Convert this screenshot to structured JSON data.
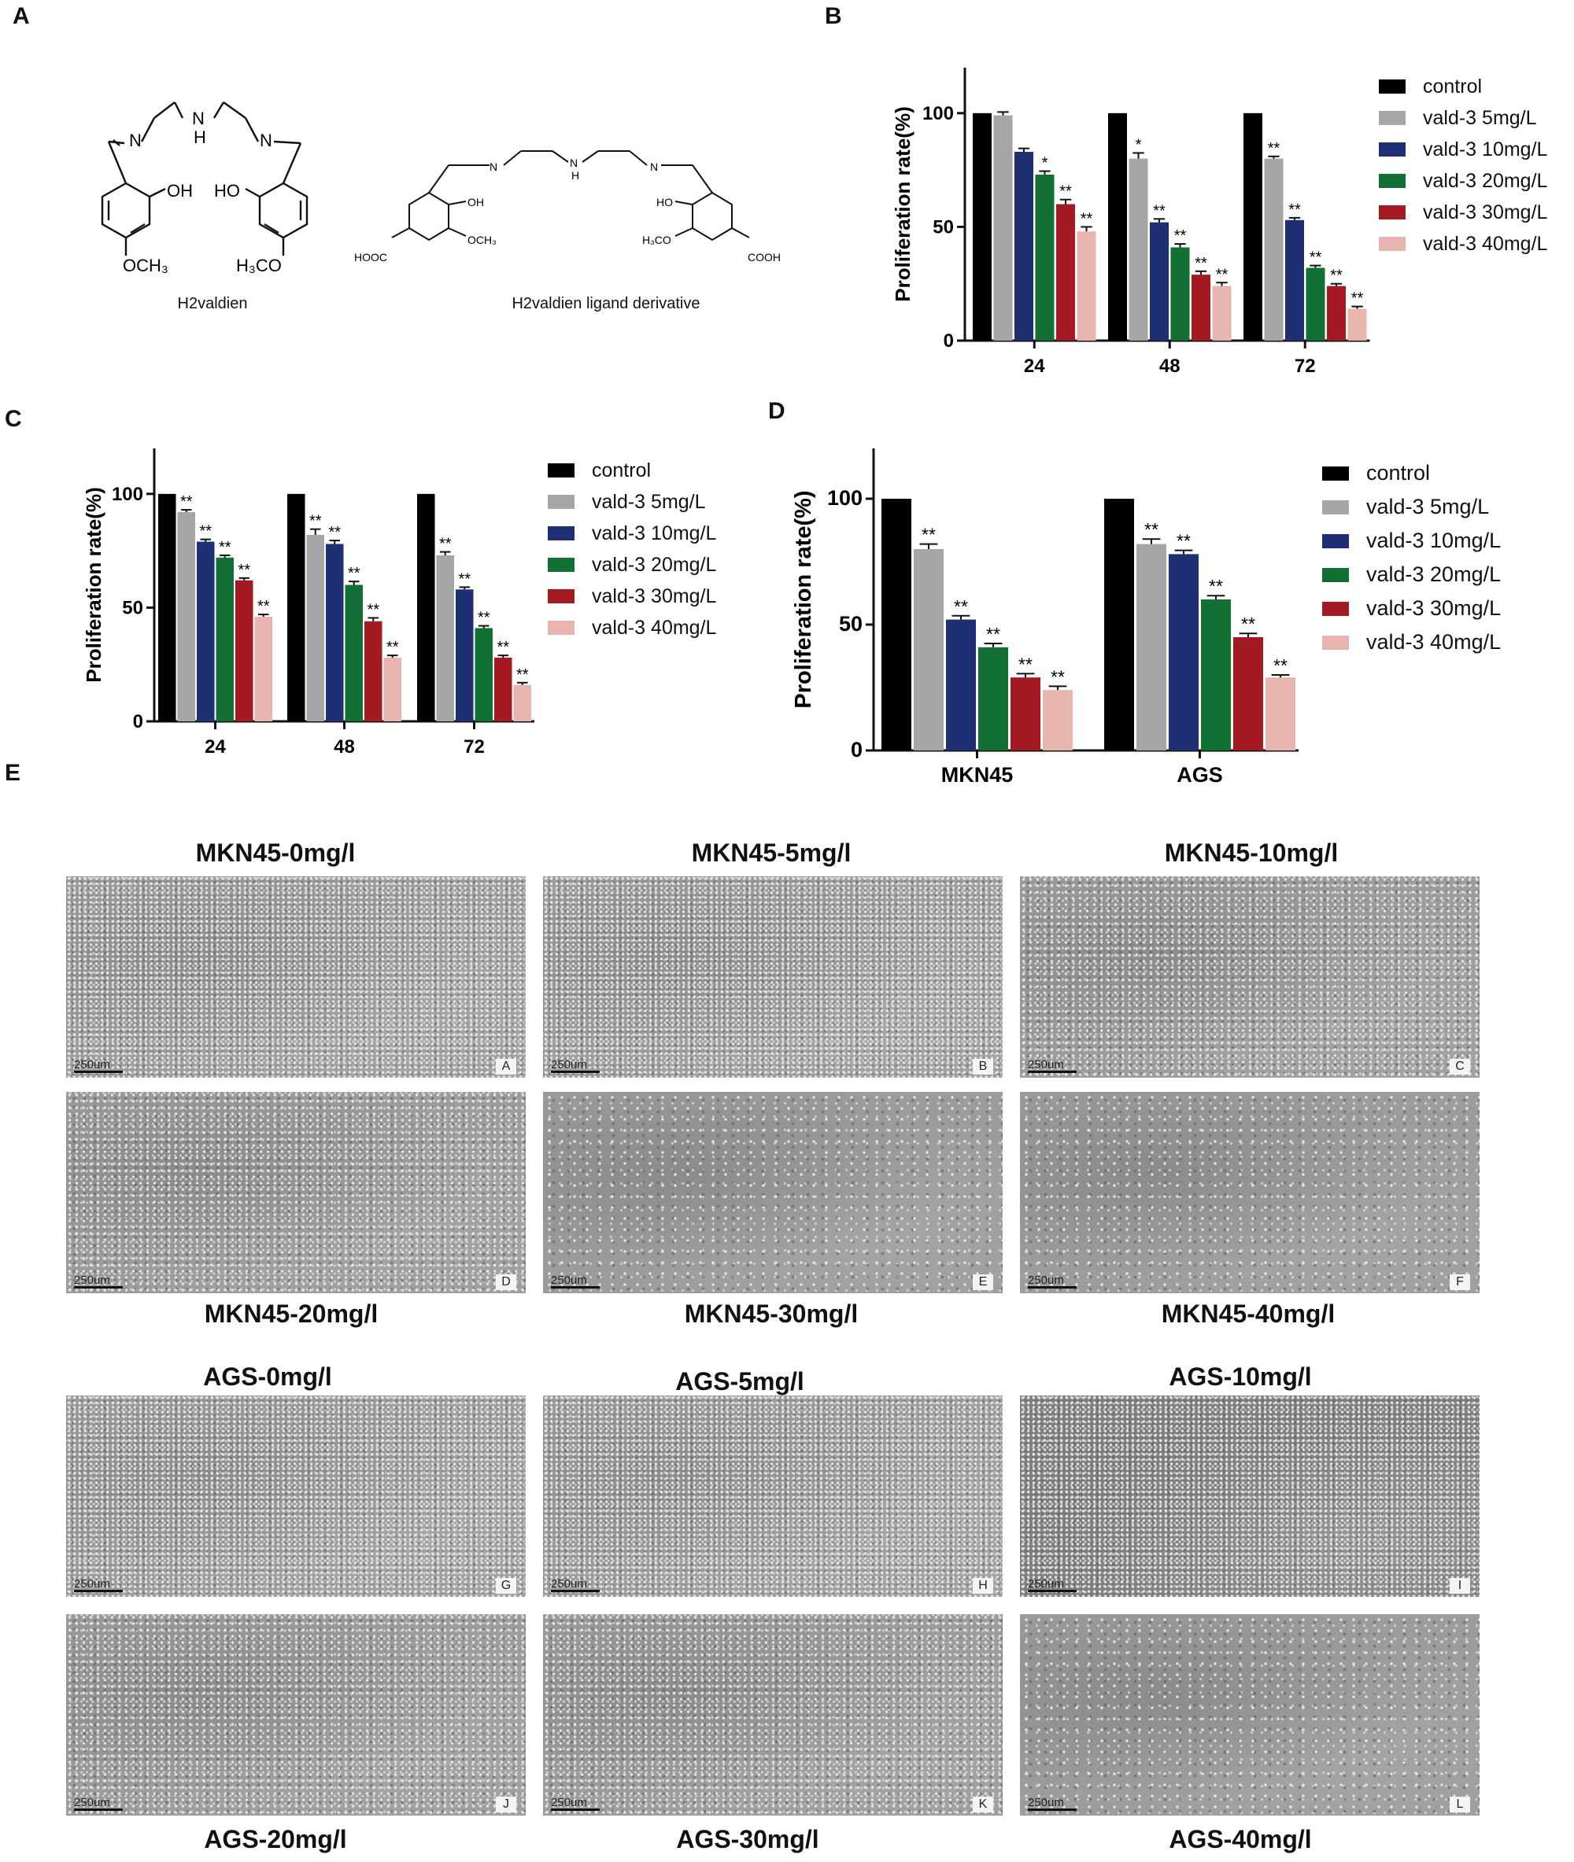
{
  "panels": {
    "A": "A",
    "B": "B",
    "C": "C",
    "D": "D",
    "E": "E"
  },
  "chem": {
    "left_name": "H2valdien",
    "right_name": "H2valdien ligand derivative",
    "left_atoms": {
      "n1": "N",
      "nh": "N",
      "h": "H",
      "n2": "N",
      "oh": "OH",
      "ho": "HO",
      "och3": "OCH₃",
      "h3co": "H₃CO"
    },
    "right_atoms": {
      "n1": "N",
      "nh": "N",
      "h": "H",
      "n2": "N",
      "oh": "OH",
      "ho": "HO",
      "och3": "OCH₃",
      "h3co": "H₃CO",
      "hooc": "HOOC",
      "cooh": "COOH"
    }
  },
  "legend": [
    "control",
    "vald-3 5mg/L",
    "vald-3 10mg/L",
    "vald-3 20mg/L",
    "vald-3 30mg/L",
    "vald-3 40mg/L"
  ],
  "colors": [
    "#000000",
    "#a6a6a6",
    "#1f2f73",
    "#127035",
    "#a31a22",
    "#e8b4b0"
  ],
  "chart_data": [
    {
      "panel": "B",
      "type": "bar",
      "categories": [
        "24",
        "48",
        "72"
      ],
      "ylabel": "Proliferation rate(%)",
      "yticks": [
        0,
        50,
        100
      ],
      "ylim": [
        0,
        120
      ],
      "series": [
        {
          "name": "control",
          "values": [
            100,
            100,
            100
          ],
          "errors": [
            0,
            0,
            0
          ],
          "sig": [
            "",
            "",
            ""
          ]
        },
        {
          "name": "vald-3 5mg/L",
          "values": [
            99,
            80,
            80
          ],
          "errors": [
            1.5,
            2.5,
            1
          ],
          "sig": [
            "",
            "*",
            "**"
          ]
        },
        {
          "name": "vald-3 10mg/L",
          "values": [
            83,
            52,
            53
          ],
          "errors": [
            1.5,
            1.5,
            1
          ],
          "sig": [
            "",
            "**",
            "**"
          ]
        },
        {
          "name": "vald-3 20mg/L",
          "values": [
            73,
            41,
            32
          ],
          "errors": [
            1.5,
            1.5,
            1
          ],
          "sig": [
            "*",
            "**",
            "**"
          ]
        },
        {
          "name": "vald-3 30mg/L",
          "values": [
            60,
            29,
            24
          ],
          "errors": [
            2,
            1.5,
            1
          ],
          "sig": [
            "**",
            "**",
            "**"
          ]
        },
        {
          "name": "vald-3 40mg/L",
          "values": [
            48,
            24,
            14
          ],
          "errors": [
            2,
            1.5,
            1
          ],
          "sig": [
            "**",
            "**",
            "**"
          ]
        }
      ]
    },
    {
      "panel": "C",
      "type": "bar",
      "categories": [
        "24",
        "48",
        "72"
      ],
      "ylabel": "Proliferation rate(%)",
      "yticks": [
        0,
        50,
        100
      ],
      "ylim": [
        0,
        120
      ],
      "series": [
        {
          "name": "control",
          "values": [
            100,
            100,
            100
          ],
          "errors": [
            0,
            0,
            0
          ],
          "sig": [
            "",
            "",
            ""
          ]
        },
        {
          "name": "vald-3 5mg/L",
          "values": [
            92,
            82,
            73
          ],
          "errors": [
            1,
            2.5,
            1.5
          ],
          "sig": [
            "**",
            "**",
            "**"
          ]
        },
        {
          "name": "vald-3 10mg/L",
          "values": [
            79,
            78,
            58
          ],
          "errors": [
            1,
            1.5,
            1
          ],
          "sig": [
            "**",
            "**",
            "**"
          ]
        },
        {
          "name": "vald-3 20mg/L",
          "values": [
            72,
            60,
            41
          ],
          "errors": [
            1,
            1.5,
            1
          ],
          "sig": [
            "**",
            "**",
            "**"
          ]
        },
        {
          "name": "vald-3 30mg/L",
          "values": [
            62,
            44,
            28
          ],
          "errors": [
            1,
            1.5,
            1
          ],
          "sig": [
            "**",
            "**",
            "**"
          ]
        },
        {
          "name": "vald-3 40mg/L",
          "values": [
            46,
            28,
            16
          ],
          "errors": [
            1,
            1,
            1
          ],
          "sig": [
            "**",
            "**",
            "**"
          ]
        }
      ]
    },
    {
      "panel": "D",
      "type": "bar",
      "categories": [
        "MKN45",
        "AGS"
      ],
      "ylabel": "Proliferation rate(%)",
      "yticks": [
        0,
        50,
        100
      ],
      "ylim": [
        0,
        120
      ],
      "series": [
        {
          "name": "control",
          "values": [
            100,
            100
          ],
          "errors": [
            0,
            0
          ],
          "sig": [
            "",
            ""
          ]
        },
        {
          "name": "vald-3 5mg/L",
          "values": [
            80,
            82
          ],
          "errors": [
            2,
            2
          ],
          "sig": [
            "**",
            "**"
          ]
        },
        {
          "name": "vald-3 10mg/L",
          "values": [
            52,
            78
          ],
          "errors": [
            1.5,
            1.5
          ],
          "sig": [
            "**",
            "**"
          ]
        },
        {
          "name": "vald-3 20mg/L",
          "values": [
            41,
            60
          ],
          "errors": [
            1.5,
            1.5
          ],
          "sig": [
            "**",
            "**"
          ]
        },
        {
          "name": "vald-3 30mg/L",
          "values": [
            29,
            45
          ],
          "errors": [
            1.5,
            1.5
          ],
          "sig": [
            "**",
            "**"
          ]
        },
        {
          "name": "vald-3 40mg/L",
          "values": [
            24,
            29
          ],
          "errors": [
            1.5,
            1
          ],
          "sig": [
            "**",
            "**"
          ]
        }
      ]
    }
  ],
  "micrographs": {
    "mkn45_titles": [
      "MKN45-0mg/l",
      "MKN45-5mg/l",
      "MKN45-10mg/l",
      "MKN45-20mg/l",
      "MKN45-30mg/l",
      "MKN45-40mg/l"
    ],
    "ags_titles": [
      "AGS-0mg/l",
      "AGS-5mg/l",
      "AGS-10mg/l",
      "AGS-20mg/l",
      "AGS-30mg/l",
      "AGS-40mg/l"
    ],
    "letters": [
      "A",
      "B",
      "C",
      "D",
      "E",
      "F",
      "G",
      "H",
      "I",
      "J",
      "K",
      "L"
    ],
    "scale": "250um"
  }
}
